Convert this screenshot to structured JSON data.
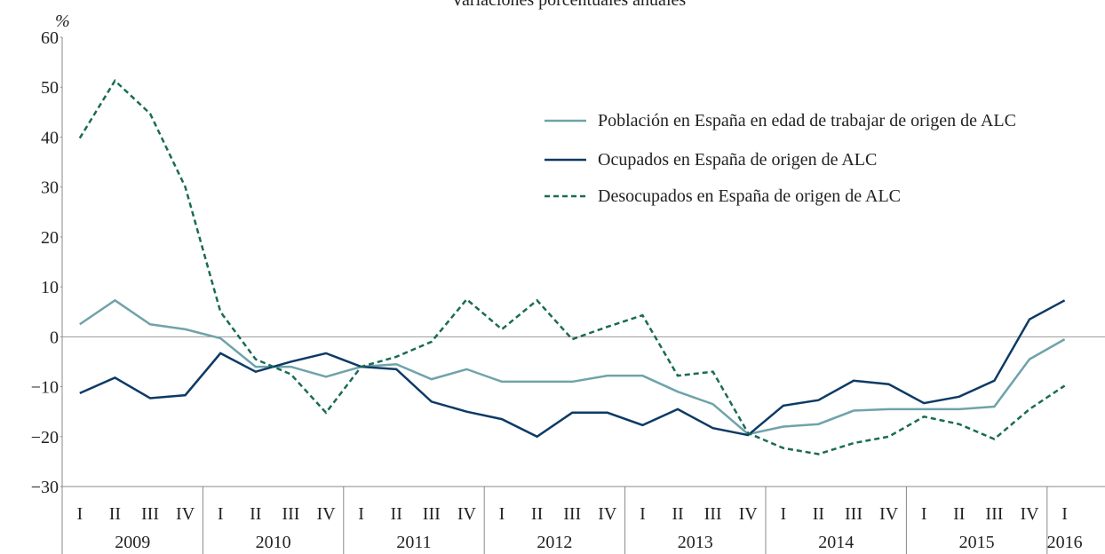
{
  "chart_data": {
    "type": "line",
    "title": "Variaciones porcentuales anuales",
    "y_unit": "%",
    "categories": [
      "I",
      "II",
      "III",
      "IV",
      "I",
      "II",
      "III",
      "IV",
      "I",
      "II",
      "III",
      "IV",
      "I",
      "II",
      "III",
      "IV",
      "I",
      "II",
      "III",
      "IV",
      "I",
      "II",
      "III",
      "IV",
      "I",
      "II",
      "III",
      "IV",
      "I"
    ],
    "groups": [
      "2009",
      "2010",
      "2011",
      "2012",
      "2013",
      "2014",
      "2015",
      "2016"
    ],
    "ylim": [
      -30,
      60
    ],
    "yticks": [
      {
        "value": -30,
        "label": "−30"
      },
      {
        "value": -20,
        "label": "−20"
      },
      {
        "value": -10,
        "label": "−10"
      },
      0,
      10,
      20,
      30,
      40,
      50,
      60
    ],
    "series": [
      {
        "name": "Población en España en edad de trabajar de origen de ALC",
        "color": "#6fa3aa",
        "dash": false,
        "values": [
          2.5,
          7.3,
          2.5,
          1.5,
          -0.3,
          -6,
          -6,
          -8,
          -6,
          -5.5,
          -8.5,
          -6.5,
          -9,
          -9,
          -9,
          -7.8,
          -7.8,
          -11,
          -13.5,
          -19.5,
          -18,
          -17.5,
          -14.8,
          -14.5,
          -14.5,
          -14.5,
          -14,
          -4.5,
          -0.5
        ]
      },
      {
        "name": "Ocupados en España de origen de ALC",
        "color": "#0d3a66",
        "dash": false,
        "values": [
          -11.3,
          -8.2,
          -12.3,
          -11.7,
          -3.3,
          -7,
          -5,
          -3.3,
          -6,
          -6.5,
          -13,
          -15,
          -16.5,
          -20,
          -15.2,
          -15.2,
          -17.7,
          -14.5,
          -18.3,
          -19.7,
          -13.8,
          -12.7,
          -8.8,
          -9.5,
          -13.3,
          -12,
          -8.8,
          3.5,
          7.3
        ]
      },
      {
        "name": "Desocupados en España de origen de ALC",
        "color": "#1a6b55",
        "dash": true,
        "values": [
          39.8,
          51.3,
          44.7,
          30,
          5,
          -4.5,
          -7.5,
          -15.2,
          -6,
          -4,
          -1,
          7.5,
          1.5,
          7.3,
          -0.5,
          2,
          4.3,
          -7.8,
          -7,
          -19.3,
          -22.3,
          -23.5,
          -21.3,
          -20,
          -16,
          -17.5,
          -20.5,
          -14.5,
          -9.8
        ]
      }
    ]
  }
}
